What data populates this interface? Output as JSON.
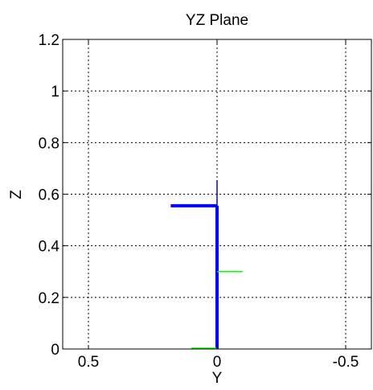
{
  "chart_data": {
    "type": "line",
    "title": "YZ Plane",
    "xlabel": "Y",
    "ylabel": "Z",
    "xlim": [
      0.6,
      -0.6
    ],
    "x_reversed": true,
    "ylim": [
      0,
      1.2
    ],
    "grid": true,
    "grid_style": "dotted",
    "xticks": [
      0.5,
      0,
      -0.5
    ],
    "xtick_labels": [
      "0.5",
      "0",
      "-0.5"
    ],
    "yticks": [
      0,
      0.2,
      0.4,
      0.6,
      0.8,
      1,
      1.2
    ],
    "ytick_labels": [
      "0",
      "0.2",
      "0.4",
      "0.6",
      "0.8",
      "1",
      "1.2"
    ],
    "series": [
      {
        "color": "#0000ff",
        "width": 4,
        "points": [
          [
            0,
            0
          ],
          [
            0,
            0.555
          ]
        ]
      },
      {
        "color": "#0000ff",
        "width": 4,
        "points": [
          [
            0.18,
            0.555
          ],
          [
            0,
            0.555
          ]
        ]
      },
      {
        "color": "#0000ff",
        "width": 1.5,
        "points": [
          [
            0,
            0.555
          ],
          [
            0,
            0.655
          ]
        ]
      },
      {
        "color": "#00ff00",
        "width": 1.5,
        "points": [
          [
            0,
            0.3
          ],
          [
            -0.1,
            0.3
          ]
        ]
      },
      {
        "color": "#00ff00",
        "width": 1.5,
        "points": [
          [
            0.1,
            0.003
          ],
          [
            0,
            0.003
          ]
        ]
      }
    ]
  }
}
